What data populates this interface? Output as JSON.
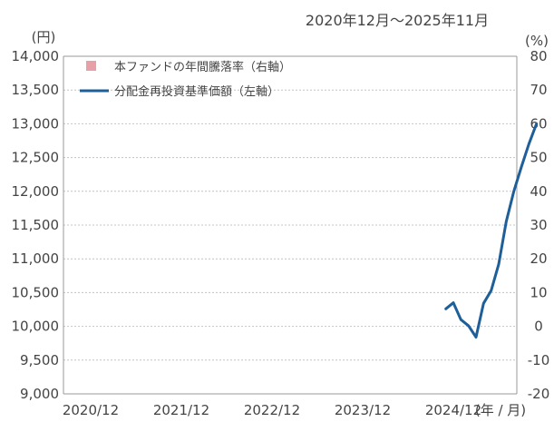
{
  "chart_data": {
    "type": "line",
    "title": "2020年12月～2025年11月",
    "y_left_unit": "(円)",
    "y_right_unit": "(%)",
    "x_unit": "(年 / 月)",
    "x_tick_labels": [
      "2020/12",
      "2021/12",
      "2022/12",
      "2023/12",
      "2024/12"
    ],
    "y_left_ticks": [
      "14,000",
      "13,500",
      "13,000",
      "12,500",
      "12,000",
      "11,500",
      "11,000",
      "10,500",
      "10,000",
      "9,500",
      "9,000"
    ],
    "y_right_ticks": [
      "80",
      "70",
      "60",
      "50",
      "40",
      "30",
      "20",
      "10",
      "0",
      "-10",
      "-20"
    ],
    "ylim_left": [
      9000,
      14000
    ],
    "ylim_right": [
      -20,
      80
    ],
    "grid": true,
    "legend": {
      "placement": "top-left",
      "items": [
        {
          "label": "本ファンドの年間騰落率（右軸）",
          "color": "#e8a0a8",
          "marker": "square"
        },
        {
          "label": "分配金再投資基準価額（左軸）",
          "color": "#1f5f99",
          "marker": "line"
        }
      ]
    },
    "series": [
      {
        "name": "分配金再投資基準価額（左軸）",
        "axis": "left",
        "color": "#1f5f99",
        "x": [
          "2024/11",
          "2024/12",
          "2025/01",
          "2025/02",
          "2025/03",
          "2025/04",
          "2025/05",
          "2025/06",
          "2025/07",
          "2025/08",
          "2025/09",
          "2025/10",
          "2025/11"
        ],
        "values": [
          10260,
          10350,
          10100,
          10010,
          9840,
          10340,
          10530,
          10920,
          11550,
          12000,
          12360,
          12700,
          13000
        ]
      },
      {
        "name": "本ファンドの年間騰落率（右軸）",
        "axis": "right",
        "color": "#e8a0a8",
        "x": [],
        "values": []
      }
    ]
  }
}
